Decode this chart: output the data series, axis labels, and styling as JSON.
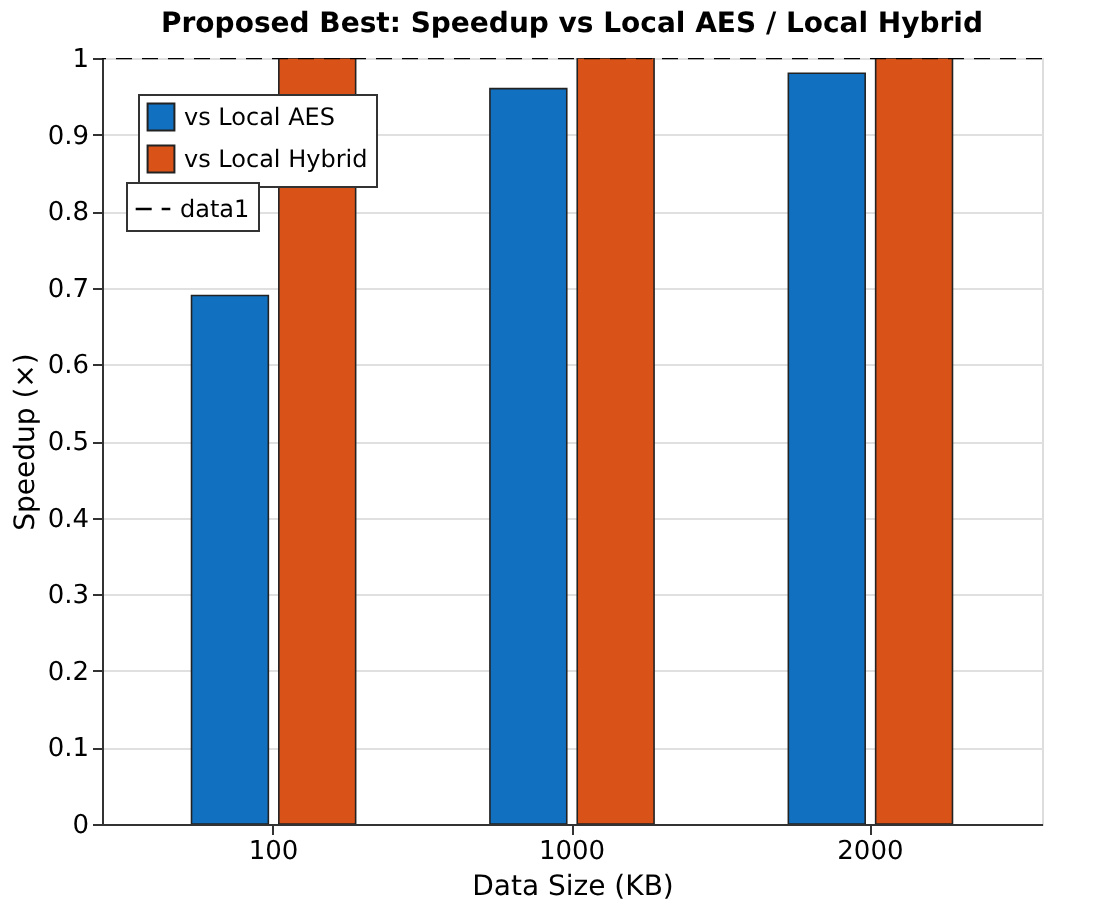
{
  "chart_data": {
    "type": "bar",
    "title": "Proposed Best: Speedup vs Local AES / Local Hybrid",
    "xlabel": "Data Size (KB)",
    "ylabel": "Speedup (×)",
    "categories": [
      "100",
      "1000",
      "2000"
    ],
    "series": [
      {
        "name": "vs Local AES",
        "color": "#1170c0",
        "values": [
          0.69,
          0.96,
          0.98
        ]
      },
      {
        "name": "vs Local Hybrid",
        "color": "#d95319",
        "values": [
          1,
          1,
          1
        ]
      }
    ],
    "ref_lines": [
      {
        "axis": "y",
        "value": 1,
        "label": "data1",
        "color": "#000000",
        "line_style": "dashed"
      }
    ],
    "ylim": [
      0,
      1
    ],
    "yticks": [
      0,
      0.1,
      0.2,
      0.3,
      0.4,
      0.5,
      0.6,
      0.7,
      0.8,
      0.9,
      1
    ],
    "grid": "y",
    "legend": "top left"
  }
}
